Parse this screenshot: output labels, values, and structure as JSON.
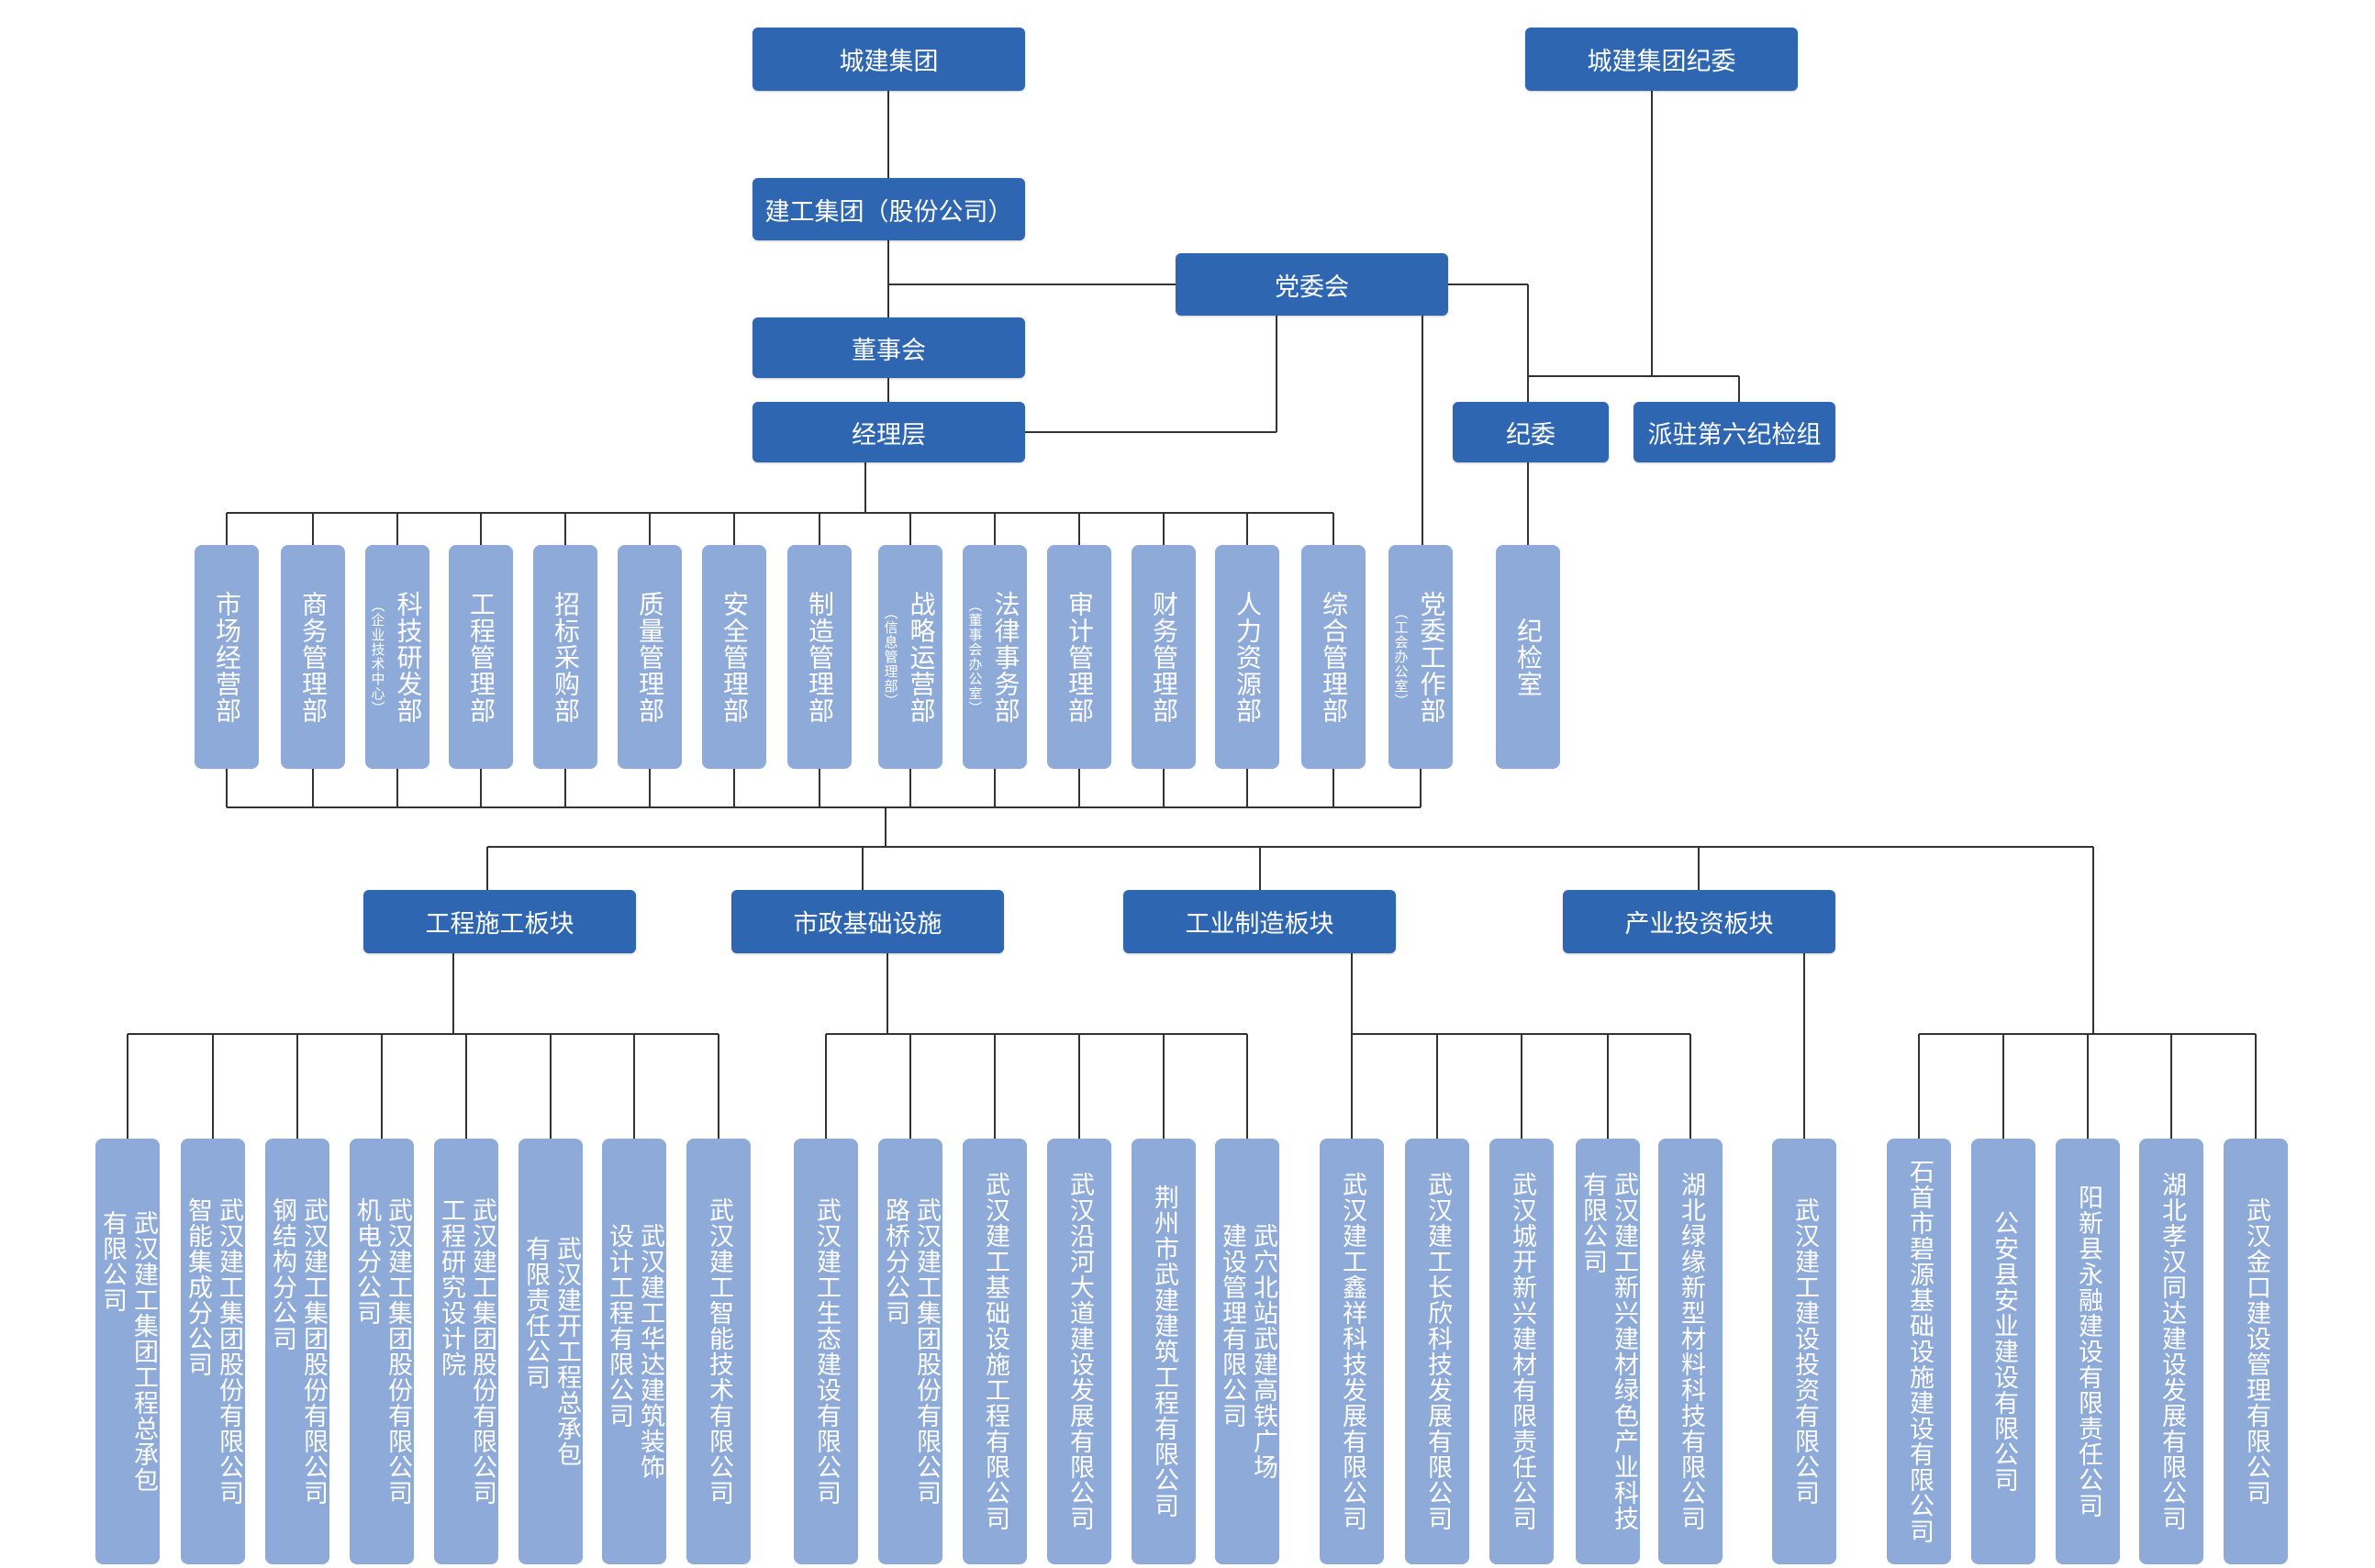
{
  "colors": {
    "dark_box": "#2e66b2",
    "light_box": "#8eaad8",
    "line": "#333333"
  },
  "top": {
    "group": "城建集团",
    "group_discipline": "城建集团纪委",
    "company": "建工集团（股份公司）",
    "party_committee": "党委会",
    "board": "董事会",
    "management": "经理层",
    "discipline_committee": "纪委",
    "inspection_team": "派驻第六纪检组"
  },
  "departments": [
    {
      "label": "市场经营部",
      "note": ""
    },
    {
      "label": "商务管理部",
      "note": ""
    },
    {
      "label": "科技研发部",
      "note": "（企业技术中心）"
    },
    {
      "label": "工程管理部",
      "note": ""
    },
    {
      "label": "招标采购部",
      "note": ""
    },
    {
      "label": "质量管理部",
      "note": ""
    },
    {
      "label": "安全管理部",
      "note": ""
    },
    {
      "label": "制造管理部",
      "note": ""
    },
    {
      "label": "战略运营部",
      "note": "（信息管理部）"
    },
    {
      "label": "法律事务部",
      "note": "（董事会办公室）"
    },
    {
      "label": "审计管理部",
      "note": ""
    },
    {
      "label": "财务管理部",
      "note": ""
    },
    {
      "label": "人力资源部",
      "note": ""
    },
    {
      "label": "综合管理部",
      "note": ""
    },
    {
      "label": "党委工作部",
      "note": "（工会办公室）"
    },
    {
      "label": "纪检室",
      "note": ""
    }
  ],
  "sectors": [
    "工程施工板块",
    "市政基础设施",
    "工业制造板块",
    "产业投资板块"
  ],
  "subsidiaries": [
    "武汉建工集团工程总承包\n有限公司",
    "武汉建工集团股份有限公司\n智能集成分公司",
    "武汉建工集团股份有限公司\n钢结构分公司",
    "武汉建工集团股份有限公司\n机电分公司",
    "武汉建工集团股份有限公司\n工程研究设计院",
    "武汉建开工程总承包\n有限责任公司",
    "武汉建工华达建筑装饰\n设计工程有限公司",
    "武汉建工智能技术有限公司",
    "武汉建工生态建设有限公司",
    "武汉建工集团股份有限公司\n路桥分公司",
    "武汉建工基础设施工程有限公司",
    "武汉沿河大道建设发展有限公司",
    "荆州市武建建筑工程有限公司",
    "武穴北站武建高铁广场\n建设管理有限公司",
    "武汉建工鑫祥科技发展有限公司",
    "武汉建工长欣科技发展有限公司",
    "武汉城开新兴建材有限责任公司",
    "武汉建工新兴建材绿色产业科技\n有限公司",
    "湖北绿缘新型材料科技有限公司",
    "武汉建工建设投资有限公司",
    "石首市碧源基础设施建设有限公司",
    "公安县安业建设有限公司",
    "阳新县永融建设有限责任公司",
    "湖北孝汉同达建设发展有限公司",
    "武汉金口建设管理有限公司"
  ]
}
